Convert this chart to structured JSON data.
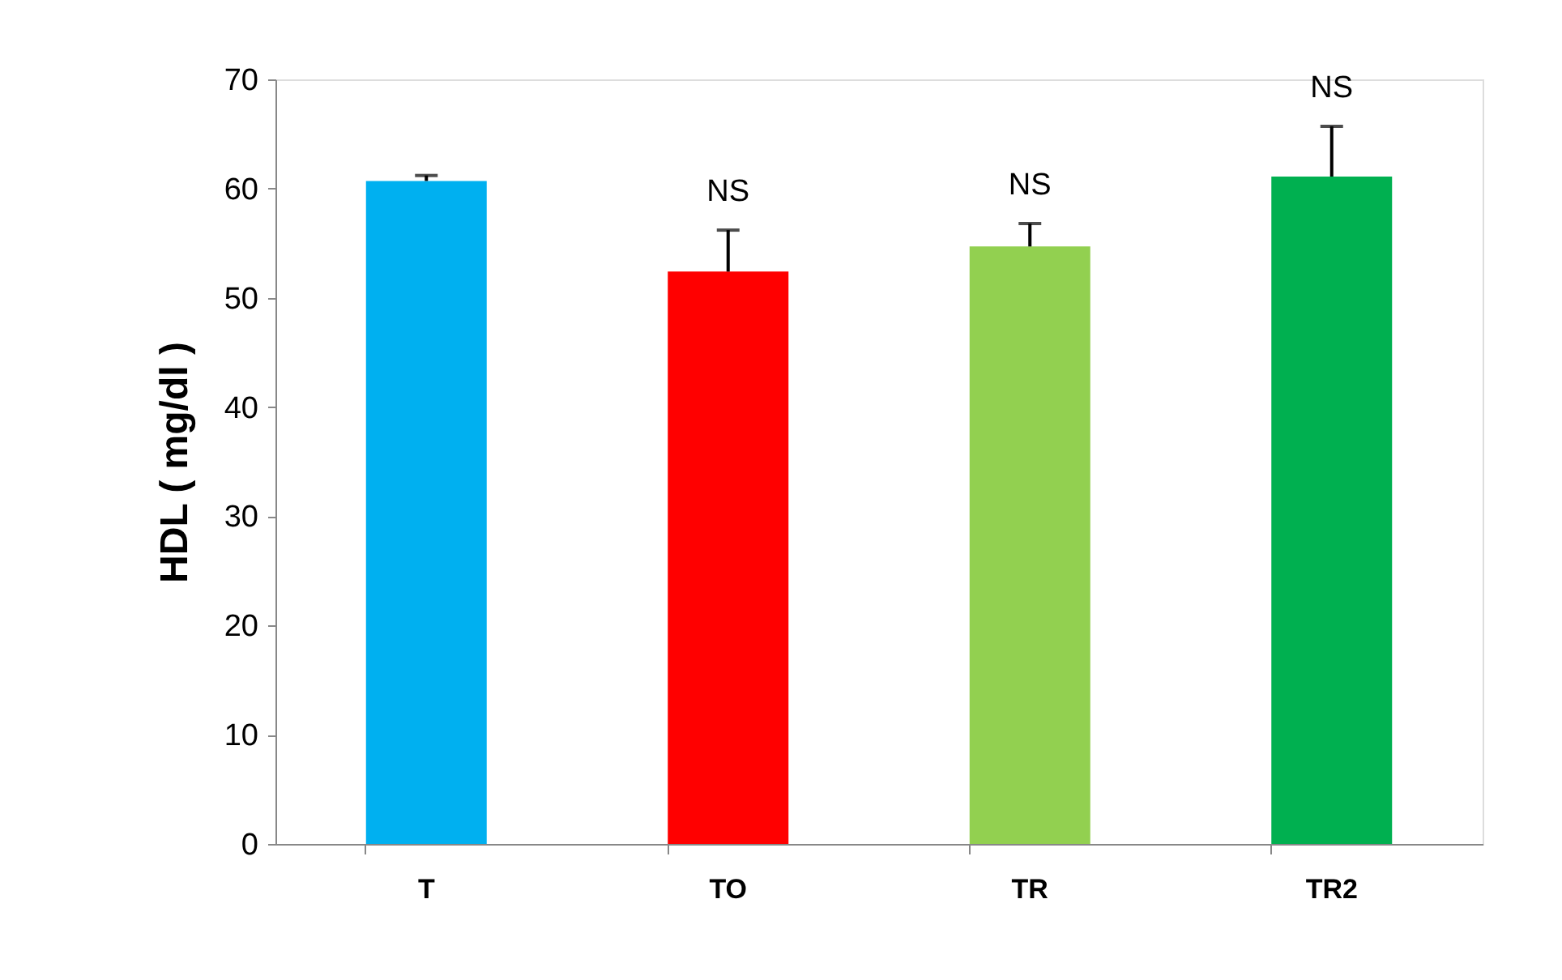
{
  "chart_data": {
    "type": "bar",
    "ylabel": "HDL ( mg/dl )",
    "categories": [
      "T",
      "TO",
      "TR",
      "TR2"
    ],
    "values": [
      60.7,
      52.4,
      54.7,
      61.1
    ],
    "colors": [
      "#00b0f0",
      "#ff0000",
      "#92d050",
      "#00b050"
    ],
    "errors": [
      [
        60.7,
        61.2
      ],
      [
        52.4,
        56.2
      ],
      [
        54.7,
        56.8
      ],
      [
        61.1,
        65.7
      ]
    ],
    "annotations": [
      "NS",
      "NS",
      "NS"
    ],
    "ylim": [
      0,
      70
    ],
    "yticks": [
      0,
      10,
      20,
      30,
      40,
      50,
      60,
      70
    ],
    "grid": false
  }
}
